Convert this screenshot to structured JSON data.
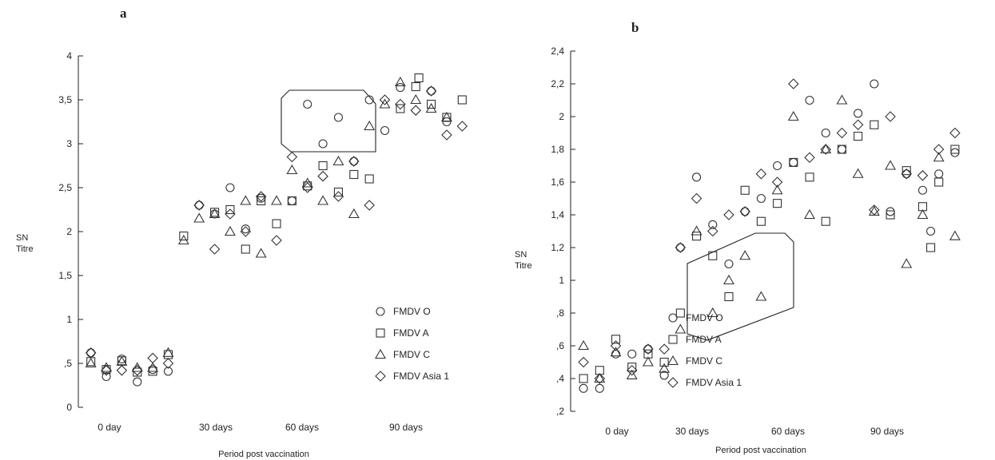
{
  "chart_data": [
    {
      "type": "scatter",
      "panel_label": "a",
      "xlabel": "Period post vaccination",
      "ylabel": "SN Titre",
      "x_tick_labels": [
        "0 day",
        "30 days",
        "60 days",
        "90 days"
      ],
      "y_tick_labels": [
        "0",
        ",5",
        "1",
        "1,5",
        "2",
        "2,5",
        "3",
        "3,5",
        "4"
      ],
      "ylim": [
        0,
        4
      ],
      "legend_position": "bottom-right",
      "series": [
        {
          "name": "FMDV O",
          "marker": "circle",
          "points": [
            [
              1,
              0.62
            ],
            [
              2,
              0.35
            ],
            [
              3,
              0.55
            ],
            [
              4,
              0.29
            ],
            [
              5,
              0.43
            ],
            [
              6,
              0.41
            ],
            [
              8,
              2.3
            ],
            [
              9,
              2.2
            ],
            [
              10,
              2.5
            ],
            [
              11,
              2.03
            ],
            [
              12,
              2.38
            ],
            [
              14,
              2.35
            ],
            [
              15,
              3.45
            ],
            [
              16,
              3.0
            ],
            [
              17,
              3.3
            ],
            [
              18,
              2.8
            ],
            [
              19,
              3.5
            ],
            [
              20,
              3.15
            ],
            [
              21,
              3.64
            ],
            [
              23,
              3.6
            ],
            [
              24,
              3.25
            ]
          ]
        },
        {
          "name": "FMDV A",
          "marker": "square",
          "points": [
            [
              1,
              0.52
            ],
            [
              2,
              0.43
            ],
            [
              3,
              0.53
            ],
            [
              4,
              0.4
            ],
            [
              5,
              0.41
            ],
            [
              6,
              0.6
            ],
            [
              7,
              1.95
            ],
            [
              9,
              2.22
            ],
            [
              10,
              2.25
            ],
            [
              11,
              1.8
            ],
            [
              12,
              2.35
            ],
            [
              13,
              2.09
            ],
            [
              14,
              2.35
            ],
            [
              15,
              2.52
            ],
            [
              16,
              2.75
            ],
            [
              17,
              2.45
            ],
            [
              18,
              2.65
            ],
            [
              19,
              2.6
            ],
            [
              21,
              3.4
            ],
            [
              22,
              3.65
            ],
            [
              22.2,
              3.75
            ],
            [
              23,
              3.45
            ],
            [
              24,
              3.3
            ],
            [
              25,
              3.5
            ]
          ]
        },
        {
          "name": "FMDV C",
          "marker": "triangle",
          "points": [
            [
              1,
              0.5
            ],
            [
              2,
              0.45
            ],
            [
              3,
              0.52
            ],
            [
              4,
              0.45
            ],
            [
              5,
              0.45
            ],
            [
              6,
              0.62
            ],
            [
              7,
              1.9
            ],
            [
              8,
              2.15
            ],
            [
              9,
              2.2
            ],
            [
              10,
              2.0
            ],
            [
              11,
              2.35
            ],
            [
              12,
              1.75
            ],
            [
              13,
              2.35
            ],
            [
              14,
              2.7
            ],
            [
              15,
              2.55
            ],
            [
              16,
              2.35
            ],
            [
              17,
              2.8
            ],
            [
              18,
              2.2
            ],
            [
              19,
              3.2
            ],
            [
              20,
              3.45
            ],
            [
              21,
              3.7
            ],
            [
              22,
              3.5
            ],
            [
              23,
              3.4
            ],
            [
              24,
              3.3
            ]
          ]
        },
        {
          "name": "FMDV Asia 1",
          "marker": "diamond",
          "points": [
            [
              1,
              0.62
            ],
            [
              2,
              0.42
            ],
            [
              3,
              0.42
            ],
            [
              4,
              0.42
            ],
            [
              5,
              0.56
            ],
            [
              6,
              0.5
            ],
            [
              8,
              2.3
            ],
            [
              9,
              1.8
            ],
            [
              10,
              2.2
            ],
            [
              11,
              2.0
            ],
            [
              12,
              2.4
            ],
            [
              13,
              1.9
            ],
            [
              14,
              2.85
            ],
            [
              15,
              2.5
            ],
            [
              16,
              2.63
            ],
            [
              17,
              2.4
            ],
            [
              18,
              2.8
            ],
            [
              19,
              2.3
            ],
            [
              20,
              3.5
            ],
            [
              21,
              3.45
            ],
            [
              22,
              3.38
            ],
            [
              23,
              3.6
            ],
            [
              24,
              3.1
            ],
            [
              25,
              3.2
            ]
          ]
        }
      ]
    },
    {
      "type": "scatter",
      "panel_label": "b",
      "xlabel": "Period post vaccination",
      "ylabel": "SN Titre",
      "x_tick_labels": [
        "0 day",
        "30 days",
        "60 days",
        "90 days"
      ],
      "y_tick_labels": [
        ",2",
        ",4",
        ",6",
        ",8",
        "1",
        "1,2",
        "1,4",
        "1,6",
        "1,8",
        "2",
        "2,2",
        "2,4"
      ],
      "ylim": [
        0.2,
        2.4
      ],
      "legend_position": "bottom-right",
      "series": [
        {
          "name": "FMDV O",
          "marker": "circle",
          "points": [
            [
              1,
              0.34
            ],
            [
              2,
              0.34
            ],
            [
              3,
              0.55
            ],
            [
              4,
              0.55
            ],
            [
              5,
              0.58
            ],
            [
              6,
              0.42
            ],
            [
              7,
              1.2
            ],
            [
              8,
              1.63
            ],
            [
              9,
              1.34
            ],
            [
              10,
              1.1
            ],
            [
              11,
              1.42
            ],
            [
              12,
              1.5
            ],
            [
              13,
              1.7
            ],
            [
              14,
              1.72
            ],
            [
              15,
              2.1
            ],
            [
              16,
              1.9
            ],
            [
              17,
              1.8
            ],
            [
              18,
              2.02
            ],
            [
              19,
              2.2
            ],
            [
              20,
              1.42
            ],
            [
              21,
              1.65
            ],
            [
              22,
              1.55
            ],
            [
              22.5,
              1.3
            ],
            [
              23,
              1.65
            ],
            [
              24,
              1.78
            ]
          ]
        },
        {
          "name": "FMDV A",
          "marker": "square",
          "points": [
            [
              1,
              0.4
            ],
            [
              2,
              0.45
            ],
            [
              3,
              0.64
            ],
            [
              4,
              0.47
            ],
            [
              5,
              0.55
            ],
            [
              6,
              0.5
            ],
            [
              7,
              0.8
            ],
            [
              8,
              1.27
            ],
            [
              9,
              1.15
            ],
            [
              10,
              0.9
            ],
            [
              11,
              1.55
            ],
            [
              12,
              1.36
            ],
            [
              13,
              1.47
            ],
            [
              14,
              1.72
            ],
            [
              15,
              1.63
            ],
            [
              16,
              1.36
            ],
            [
              17,
              1.8
            ],
            [
              18,
              1.88
            ],
            [
              19,
              1.95
            ],
            [
              20,
              1.4
            ],
            [
              21,
              1.67
            ],
            [
              22,
              1.45
            ],
            [
              22.5,
              1.2
            ],
            [
              23,
              1.6
            ],
            [
              24,
              1.8
            ]
          ]
        },
        {
          "name": "FMDV C",
          "marker": "triangle",
          "points": [
            [
              1,
              0.6
            ],
            [
              2,
              0.4
            ],
            [
              3,
              0.56
            ],
            [
              4,
              0.42
            ],
            [
              5,
              0.5
            ],
            [
              6,
              0.46
            ],
            [
              7,
              0.7
            ],
            [
              8,
              1.3
            ],
            [
              9,
              0.8
            ],
            [
              10,
              1.0
            ],
            [
              11,
              1.15
            ],
            [
              12,
              0.9
            ],
            [
              13,
              1.55
            ],
            [
              14,
              2.0
            ],
            [
              15,
              1.4
            ],
            [
              16,
              1.8
            ],
            [
              17,
              2.1
            ],
            [
              18,
              1.65
            ],
            [
              19,
              1.42
            ],
            [
              20,
              1.7
            ],
            [
              21,
              1.1
            ],
            [
              22,
              1.4
            ],
            [
              23,
              1.75
            ],
            [
              24,
              1.27
            ]
          ]
        },
        {
          "name": "FMDV Asia 1",
          "marker": "diamond",
          "points": [
            [
              1,
              0.5
            ],
            [
              2,
              0.4
            ],
            [
              3,
              0.6
            ],
            [
              4,
              0.45
            ],
            [
              5,
              0.58
            ],
            [
              6,
              0.58
            ],
            [
              7,
              1.2
            ],
            [
              8,
              1.5
            ],
            [
              9,
              1.3
            ],
            [
              10,
              1.4
            ],
            [
              11,
              1.42
            ],
            [
              12,
              1.65
            ],
            [
              13,
              1.6
            ],
            [
              14,
              2.2
            ],
            [
              15,
              1.75
            ],
            [
              16,
              1.8
            ],
            [
              17,
              1.9
            ],
            [
              18,
              1.95
            ],
            [
              19,
              1.43
            ],
            [
              20,
              2.0
            ],
            [
              21,
              1.65
            ],
            [
              22,
              1.64
            ],
            [
              23,
              1.8
            ],
            [
              24,
              1.9
            ]
          ]
        }
      ]
    }
  ]
}
